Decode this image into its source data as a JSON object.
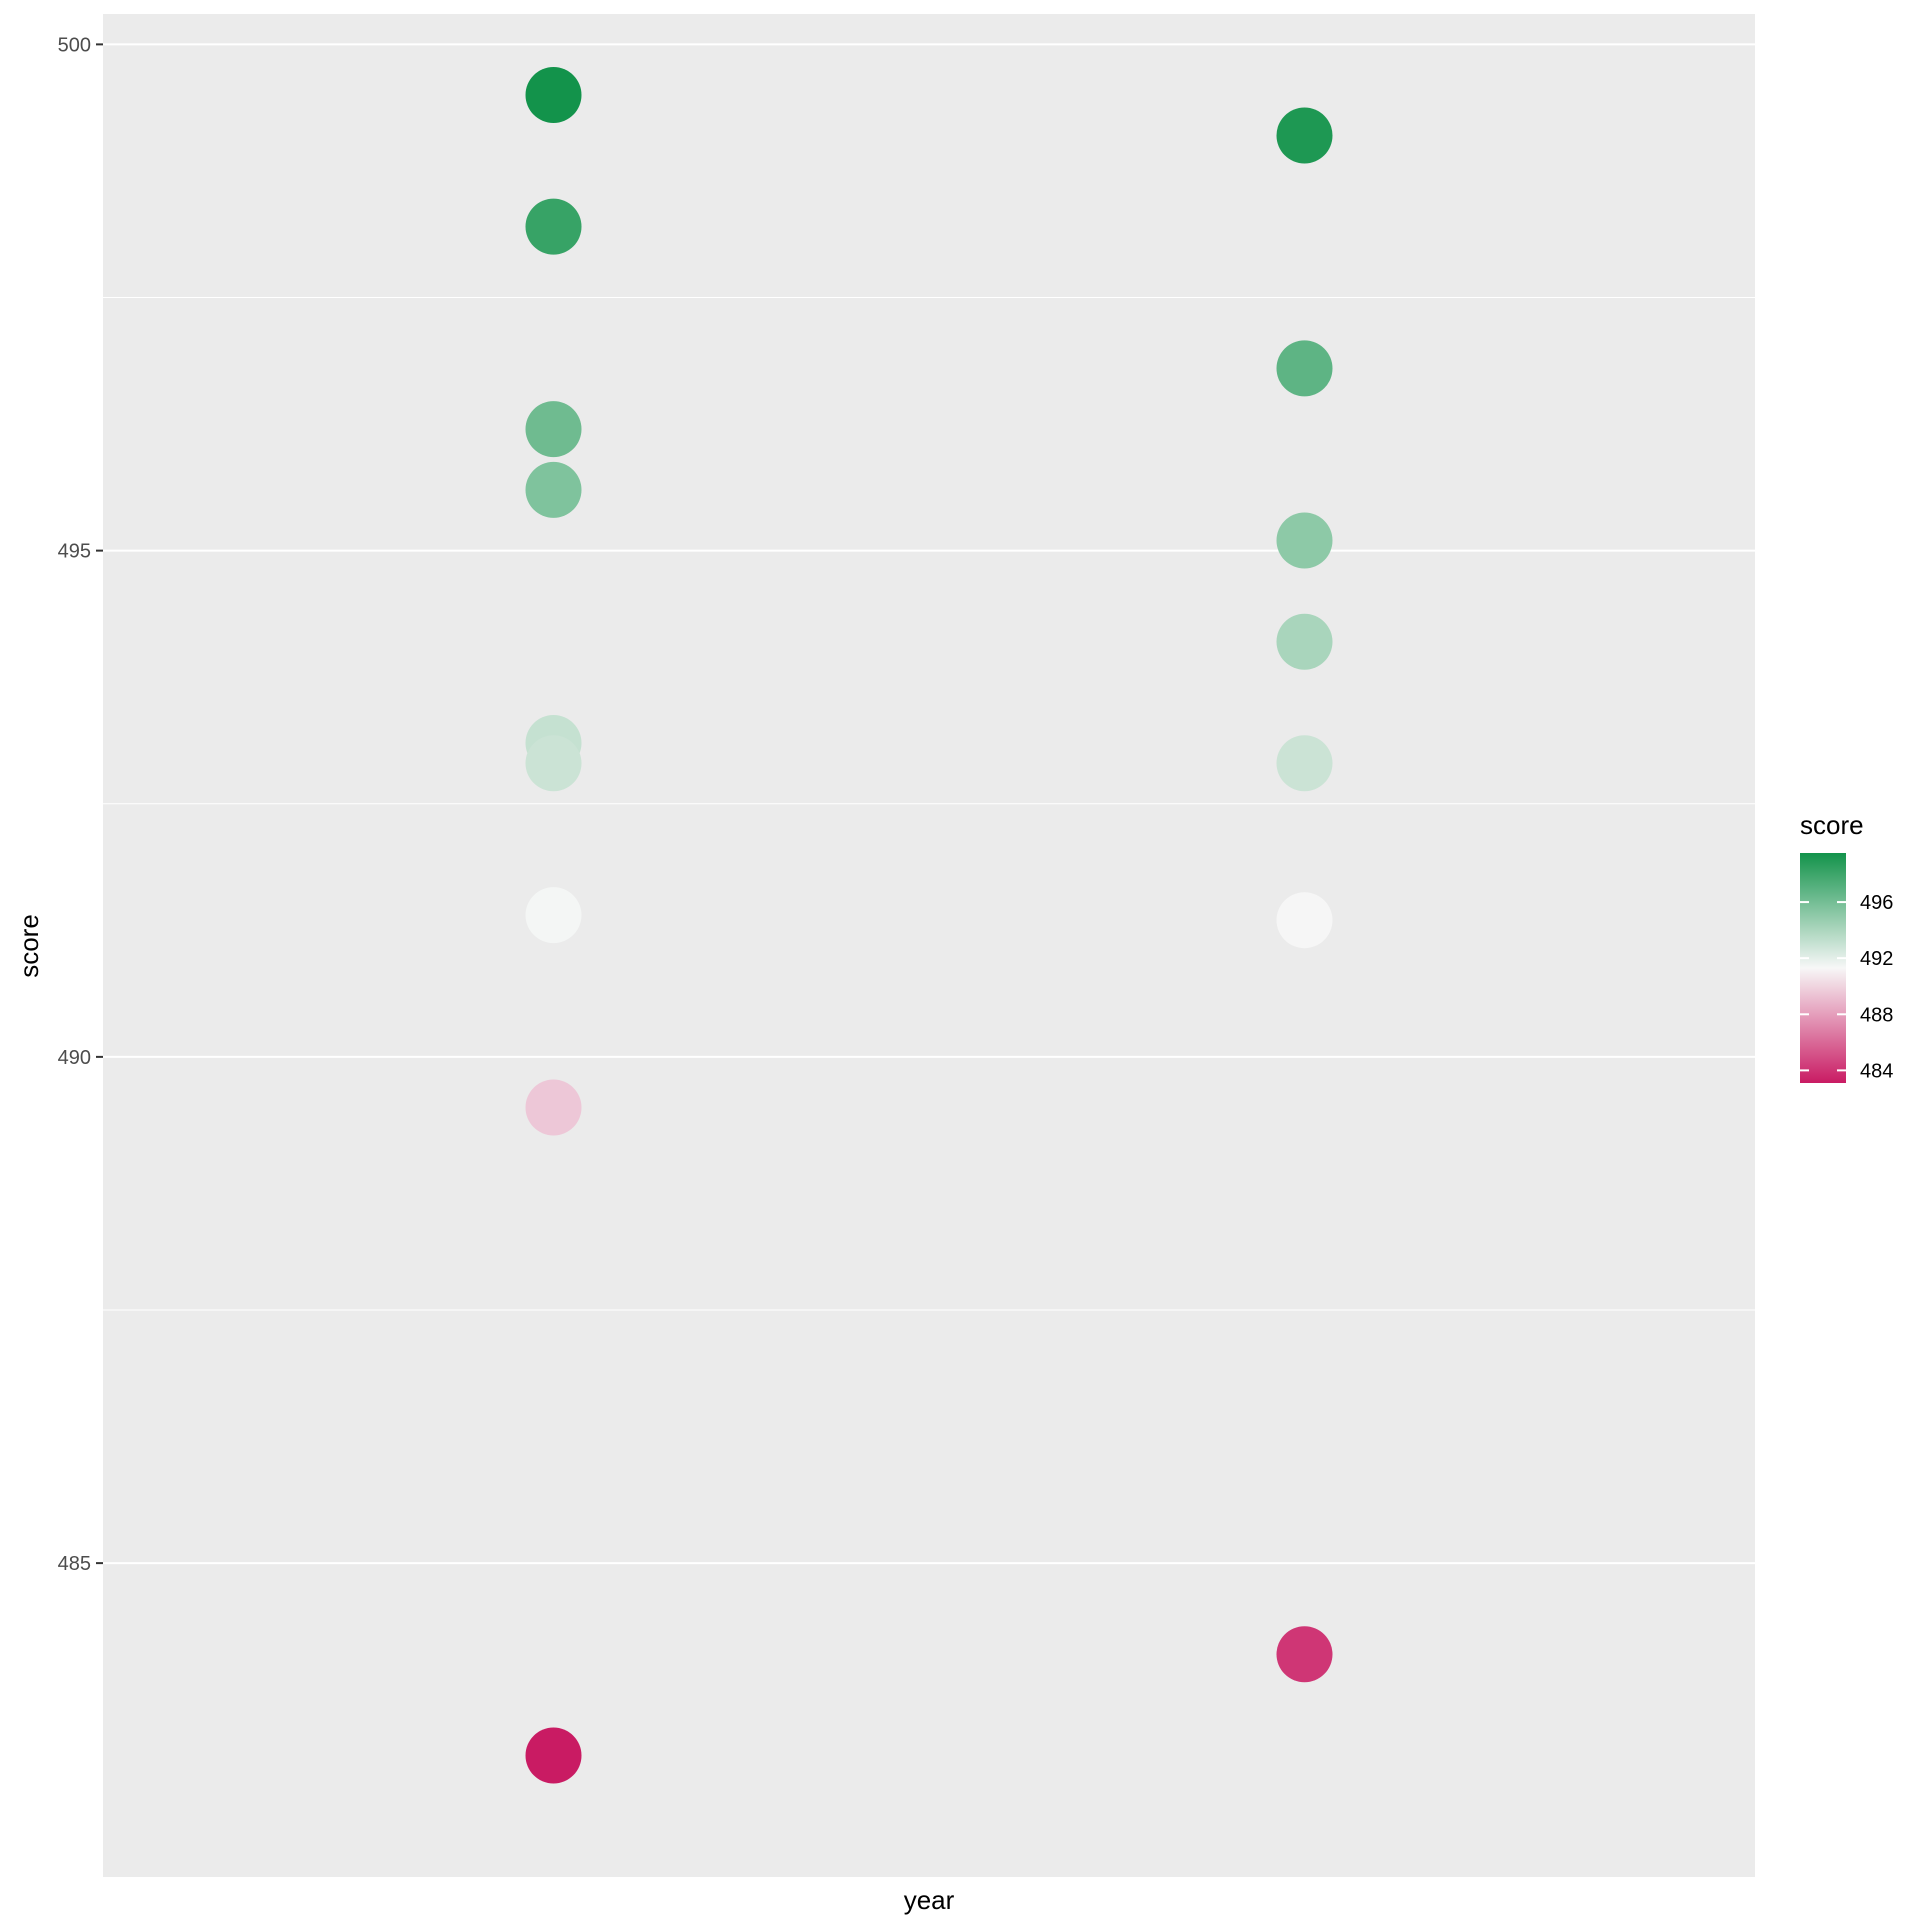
{
  "chart_data": {
    "type": "scatter",
    "xlabel": "year",
    "ylabel": "score",
    "ylim": [
      481.9,
      500.3
    ],
    "y_ticks": [
      {
        "value": 500,
        "label": "500"
      },
      {
        "value": 495,
        "label": "495"
      },
      {
        "value": 490,
        "label": "490"
      },
      {
        "value": 485,
        "label": "485"
      }
    ],
    "y_minor": [
      497.5,
      492.5,
      487.5
    ],
    "grid": true,
    "panel_background": "#ebebeb",
    "grid_color": "#ffffff",
    "groups": 2,
    "points": [
      {
        "group": 1,
        "y": 499.5
      },
      {
        "group": 1,
        "y": 498.2
      },
      {
        "group": 1,
        "y": 496.2
      },
      {
        "group": 1,
        "y": 495.6
      },
      {
        "group": 1,
        "y": 493.1
      },
      {
        "group": 1,
        "y": 492.9
      },
      {
        "group": 1,
        "y": 491.4
      },
      {
        "group": 1,
        "y": 489.5
      },
      {
        "group": 1,
        "y": 483.1
      },
      {
        "group": 2,
        "y": 499.1
      },
      {
        "group": 2,
        "y": 496.8
      },
      {
        "group": 2,
        "y": 495.1
      },
      {
        "group": 2,
        "y": 494.1
      },
      {
        "group": 2,
        "y": 492.9
      },
      {
        "group": 2,
        "y": 491.35
      },
      {
        "group": 2,
        "y": 484.1
      }
    ],
    "color_scale": {
      "title": "score",
      "min": 483.1,
      "mid": 491.3,
      "max": 499.5,
      "low_color": "#c91b63",
      "mid_color": "#f7f7f7",
      "high_color": "#13934b",
      "ticks": [
        {
          "value": 496,
          "label": "496"
        },
        {
          "value": 492,
          "label": "492"
        },
        {
          "value": 488,
          "label": "488"
        },
        {
          "value": 484,
          "label": "484"
        }
      ]
    },
    "legend_position": "right"
  }
}
